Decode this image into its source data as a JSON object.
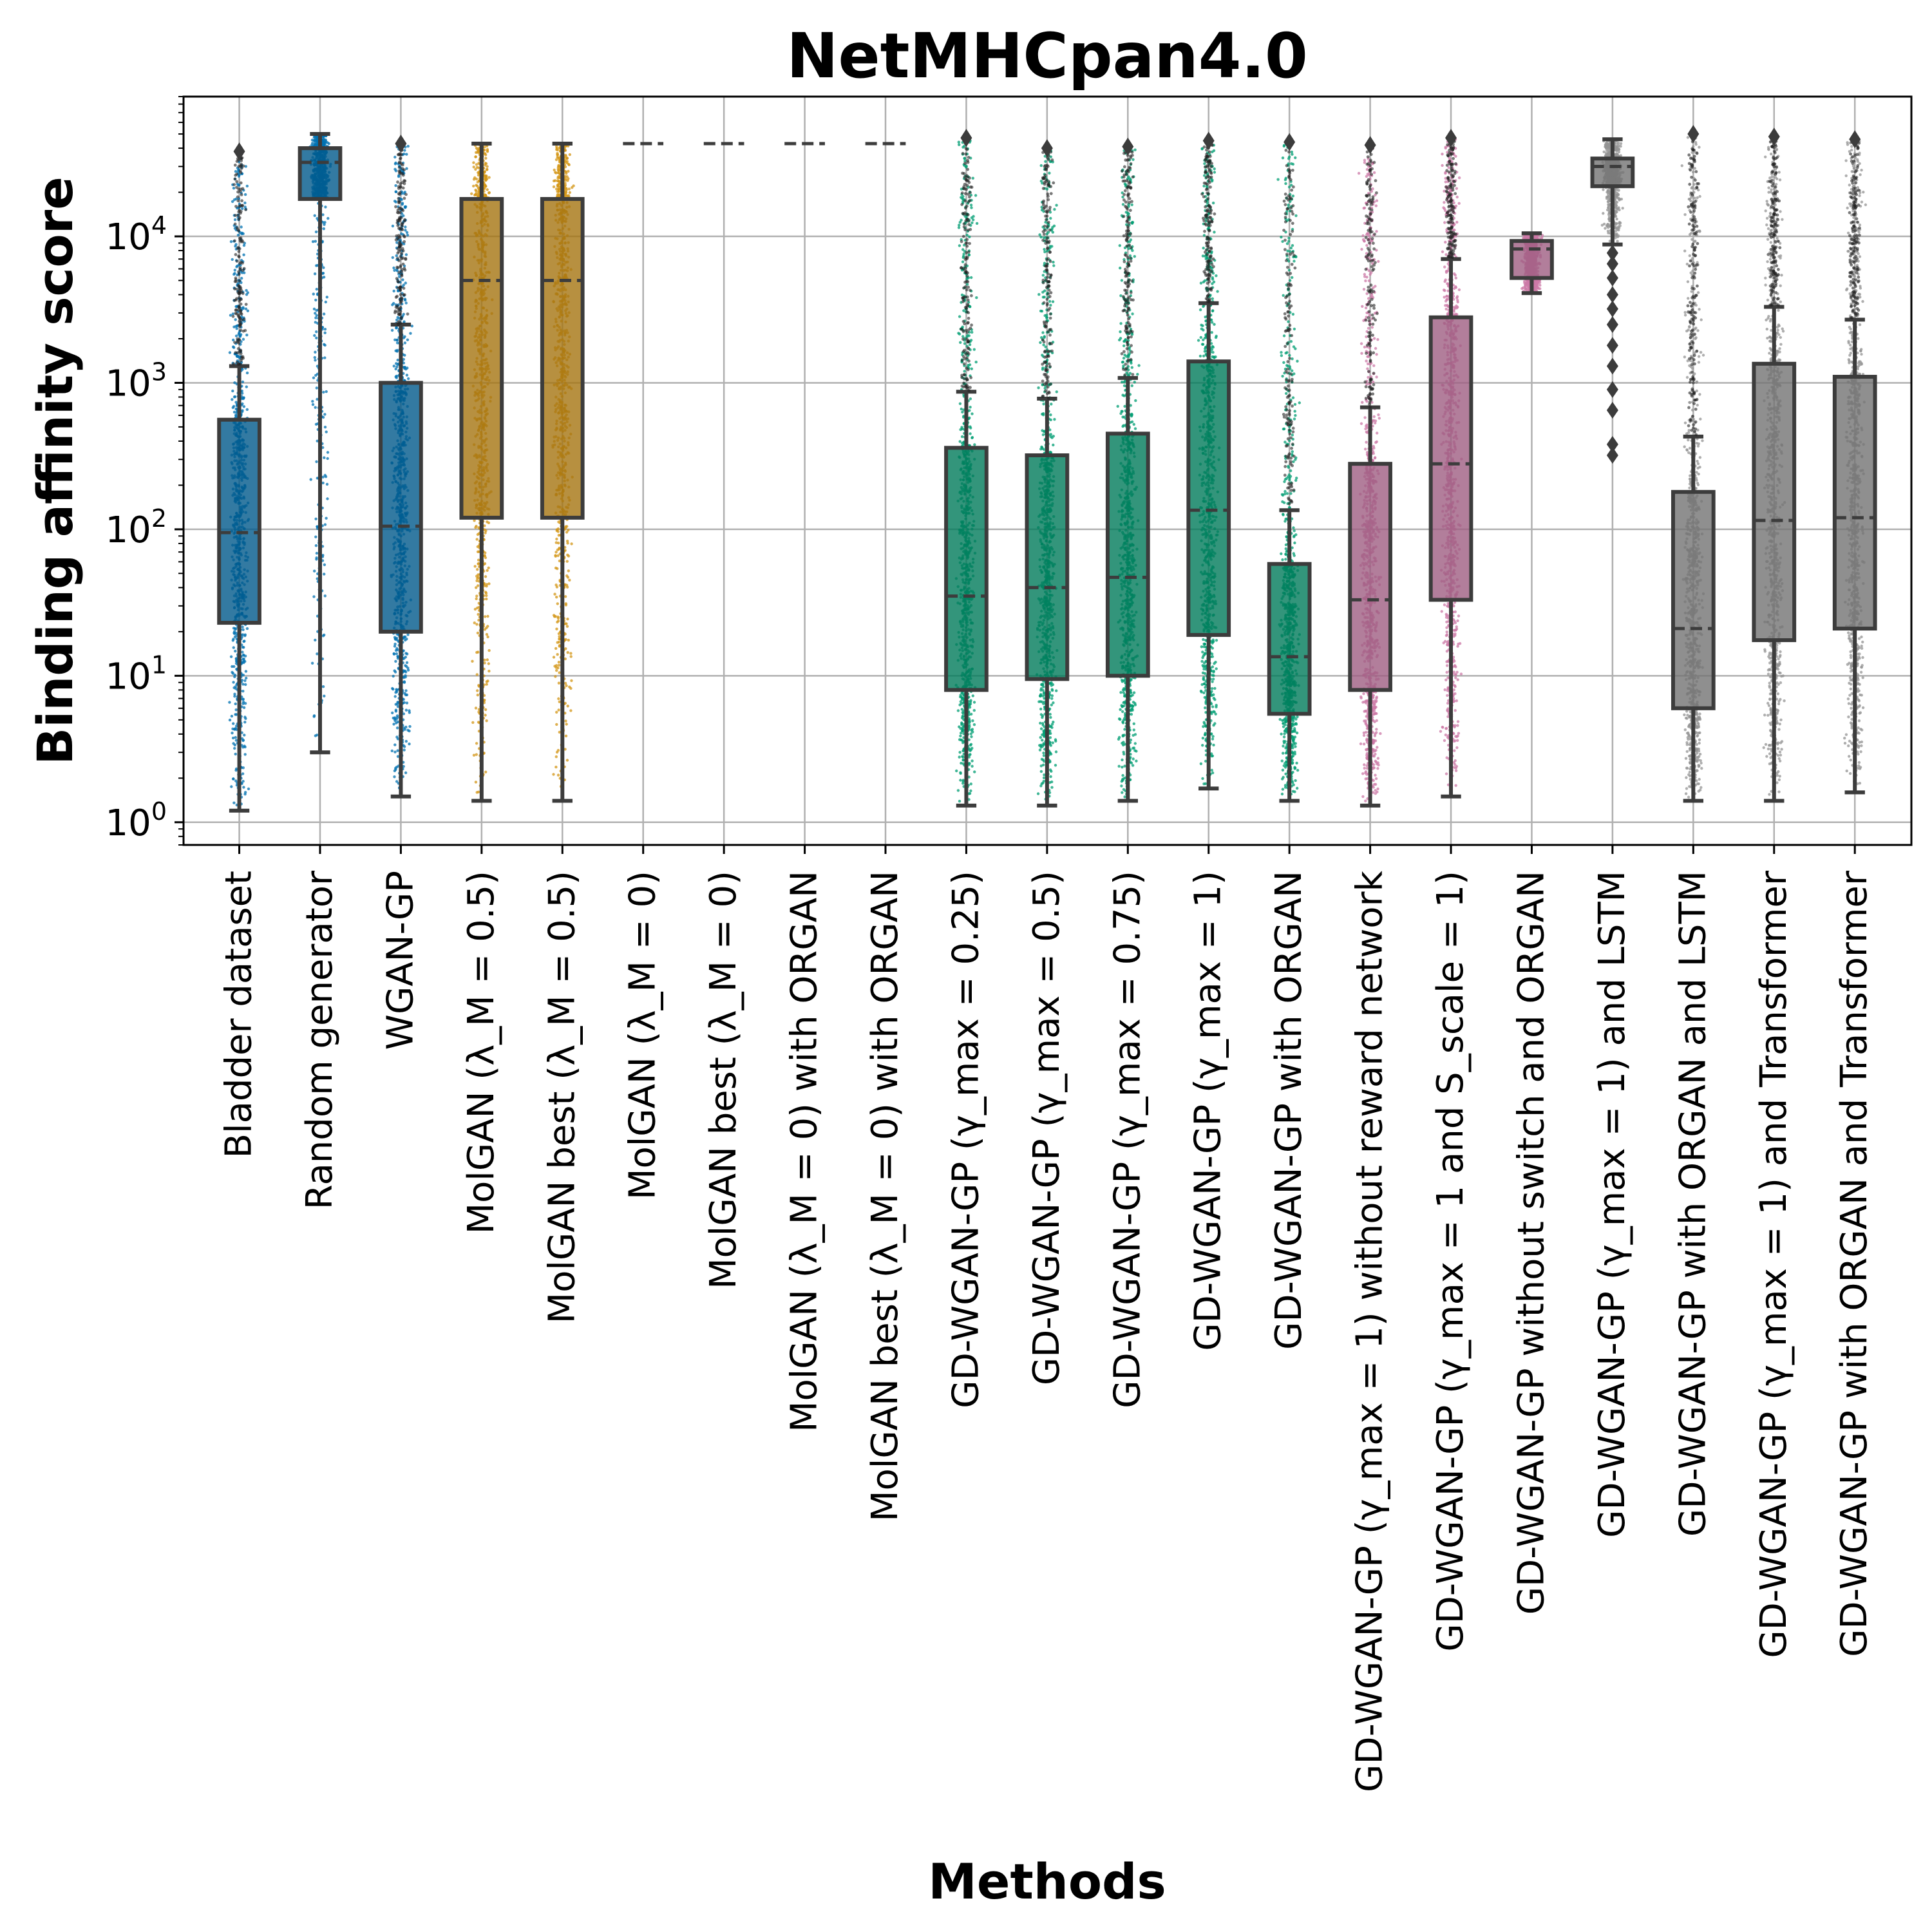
{
  "chart_data": {
    "type": "box",
    "title": "NetMHCpan4.0",
    "xlabel": "Methods",
    "ylabel": "Binding affinity score",
    "yscale": "log",
    "ylim": [
      0.7,
      90000
    ],
    "yticks": [
      {
        "base": "10",
        "exp": "0",
        "value": 1
      },
      {
        "base": "10",
        "exp": "1",
        "value": 10
      },
      {
        "base": "10",
        "exp": "2",
        "value": 100
      },
      {
        "base": "10",
        "exp": "3",
        "value": 1000
      },
      {
        "base": "10",
        "exp": "4",
        "value": 10000
      }
    ],
    "grid": true,
    "colors": {
      "blue": "#0072b2",
      "orange": "#d39515",
      "green": "#009e73",
      "pink": "#cc79a7",
      "gray": "#949494",
      "edge": "#3c3c3c"
    },
    "boxes": [
      {
        "label": "Bladder dataset",
        "color": "#0072b2",
        "q1": 23,
        "median": 95,
        "q3": 560,
        "whisker_low": 1.2,
        "whisker_high": 1300,
        "fliers_high": 38000
      },
      {
        "label": "Random generator",
        "color": "#0072b2",
        "q1": 18000,
        "median": 32000,
        "q3": 40000,
        "whisker_low": 3,
        "whisker_high": 50000
      },
      {
        "label": "WGAN-GP",
        "color": "#0072b2",
        "q1": 20,
        "median": 105,
        "q3": 1000,
        "whisker_low": 1.5,
        "whisker_high": 2500,
        "fliers_high": 43000
      },
      {
        "label": "MolGAN (λ_M = 0.5)",
        "color": "#d39515",
        "q1": 120,
        "median": 5000,
        "q3": 18000,
        "whisker_low": 1.4,
        "whisker_high": 43000
      },
      {
        "label": "MolGAN best (λ_M = 0.5)",
        "color": "#d39515",
        "q1": 120,
        "median": 5000,
        "q3": 18000,
        "whisker_low": 1.4,
        "whisker_high": 43000
      },
      {
        "label": "MolGAN (λ_M = 0)",
        "color": "#d39515",
        "q1": 43000,
        "median": 43000,
        "q3": 43000,
        "whisker_low": 43000,
        "whisker_high": 43000
      },
      {
        "label": "MolGAN best (λ_M = 0)",
        "color": "#d39515",
        "q1": 43000,
        "median": 43000,
        "q3": 43000,
        "whisker_low": 43000,
        "whisker_high": 43000
      },
      {
        "label": "MolGAN (λ_M = 0) with ORGAN",
        "color": "#d39515",
        "q1": 43000,
        "median": 43000,
        "q3": 43000,
        "whisker_low": 43000,
        "whisker_high": 43000
      },
      {
        "label": "MolGAN best (λ_M = 0) with ORGAN",
        "color": "#d39515",
        "q1": 43000,
        "median": 43000,
        "q3": 43000,
        "whisker_low": 43000,
        "whisker_high": 43000
      },
      {
        "label": "GD-WGAN-GP (γ_max = 0.25)",
        "color": "#009e73",
        "q1": 8,
        "median": 35,
        "q3": 360,
        "whisker_low": 1.3,
        "whisker_high": 870,
        "fliers_high": 47000
      },
      {
        "label": "GD-WGAN-GP (γ_max = 0.5)",
        "color": "#009e73",
        "q1": 9.5,
        "median": 40,
        "q3": 320,
        "whisker_low": 1.3,
        "whisker_high": 780,
        "fliers_high": 40000
      },
      {
        "label": "GD-WGAN-GP (γ_max = 0.75)",
        "color": "#009e73",
        "q1": 10,
        "median": 47,
        "q3": 450,
        "whisker_low": 1.4,
        "whisker_high": 1080,
        "fliers_high": 41000
      },
      {
        "label": "GD-WGAN-GP (γ_max = 1)",
        "color": "#009e73",
        "q1": 19,
        "median": 135,
        "q3": 1400,
        "whisker_low": 1.7,
        "whisker_high": 3500,
        "fliers_high": 45000
      },
      {
        "label": "GD-WGAN-GP with ORGAN",
        "color": "#009e73",
        "q1": 5.5,
        "median": 13.5,
        "q3": 58,
        "whisker_low": 1.4,
        "whisker_high": 135,
        "fliers_high": 44000
      },
      {
        "label": "GD-WGAN-GP (γ_max = 1) without reward network",
        "color": "#cc79a7",
        "q1": 8,
        "median": 33,
        "q3": 280,
        "whisker_low": 1.3,
        "whisker_high": 680,
        "fliers_high": 42000
      },
      {
        "label": "GD-WGAN-GP (γ_max = 1 and S_scale = 1)",
        "color": "#cc79a7",
        "q1": 33,
        "median": 280,
        "q3": 2800,
        "whisker_low": 1.5,
        "whisker_high": 7000,
        "fliers_high": 47000
      },
      {
        "label": "GD-WGAN-GP without switch and ORGAN",
        "color": "#cc79a7",
        "q1": 5200,
        "median": 8200,
        "q3": 9300,
        "whisker_low": 4100,
        "whisker_high": 10500
      },
      {
        "label": "GD-WGAN-GP (γ_max = 1) and LSTM",
        "color": "#949494",
        "q1": 22000,
        "median": 30000,
        "q3": 34000,
        "whisker_low": 8800,
        "whisker_high": 46000,
        "fliers_low": [
          320,
          380,
          650,
          900,
          1300,
          1800,
          2500,
          3200,
          4000,
          5200,
          6500,
          7700
        ]
      },
      {
        "label": "GD-WGAN-GP with ORGAN and LSTM",
        "color": "#949494",
        "q1": 6,
        "median": 21,
        "q3": 180,
        "whisker_low": 1.4,
        "whisker_high": 430,
        "fliers_high": 50000
      },
      {
        "label": "GD-WGAN-GP (γ_max = 1) and Transformer",
        "color": "#949494",
        "q1": 17.5,
        "median": 115,
        "q3": 1350,
        "whisker_low": 1.4,
        "whisker_high": 3300,
        "fliers_high": 48000
      },
      {
        "label": "GD-WGAN-GP with ORGAN and Transformer",
        "color": "#949494",
        "q1": 21,
        "median": 120,
        "q3": 1100,
        "whisker_low": 1.6,
        "whisker_high": 2700,
        "fliers_high": 46000
      }
    ]
  }
}
